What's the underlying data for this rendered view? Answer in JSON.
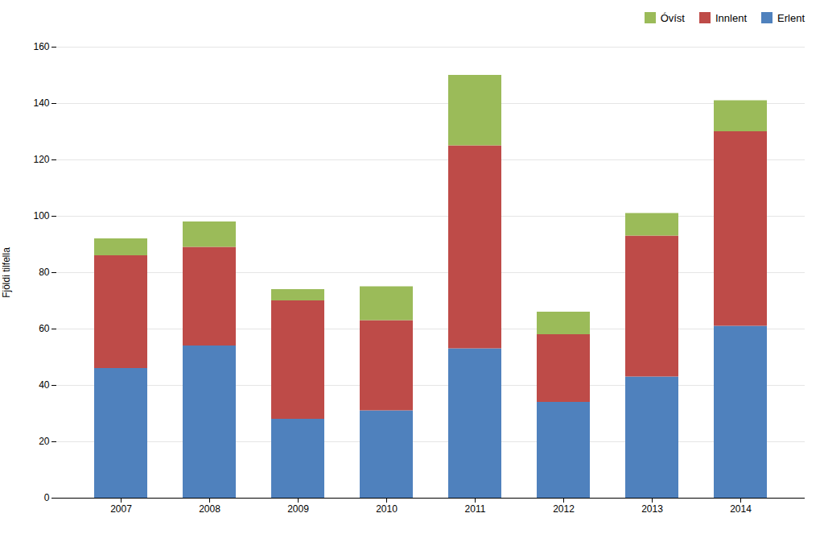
{
  "chart_data": {
    "type": "bar",
    "stacked": true,
    "categories": [
      "2007",
      "2008",
      "2009",
      "2010",
      "2011",
      "2012",
      "2013",
      "2014"
    ],
    "series": [
      {
        "name": "Erlent",
        "color": "#4F81BD",
        "values": [
          46,
          54,
          28,
          31,
          53,
          34,
          43,
          61
        ]
      },
      {
        "name": "Innlent",
        "color": "#BE4B48",
        "values": [
          40,
          35,
          42,
          32,
          72,
          24,
          50,
          69
        ]
      },
      {
        "name": "Óvíst",
        "color": "#9BBB59",
        "values": [
          6,
          9,
          4,
          12,
          25,
          8,
          8,
          11
        ]
      }
    ],
    "ylabel": "Fjöldi tilfella",
    "ylim": [
      0,
      160
    ],
    "yticks": [
      0,
      20,
      40,
      60,
      80,
      100,
      120,
      140,
      160
    ],
    "grid": true,
    "legend": "upper right"
  }
}
